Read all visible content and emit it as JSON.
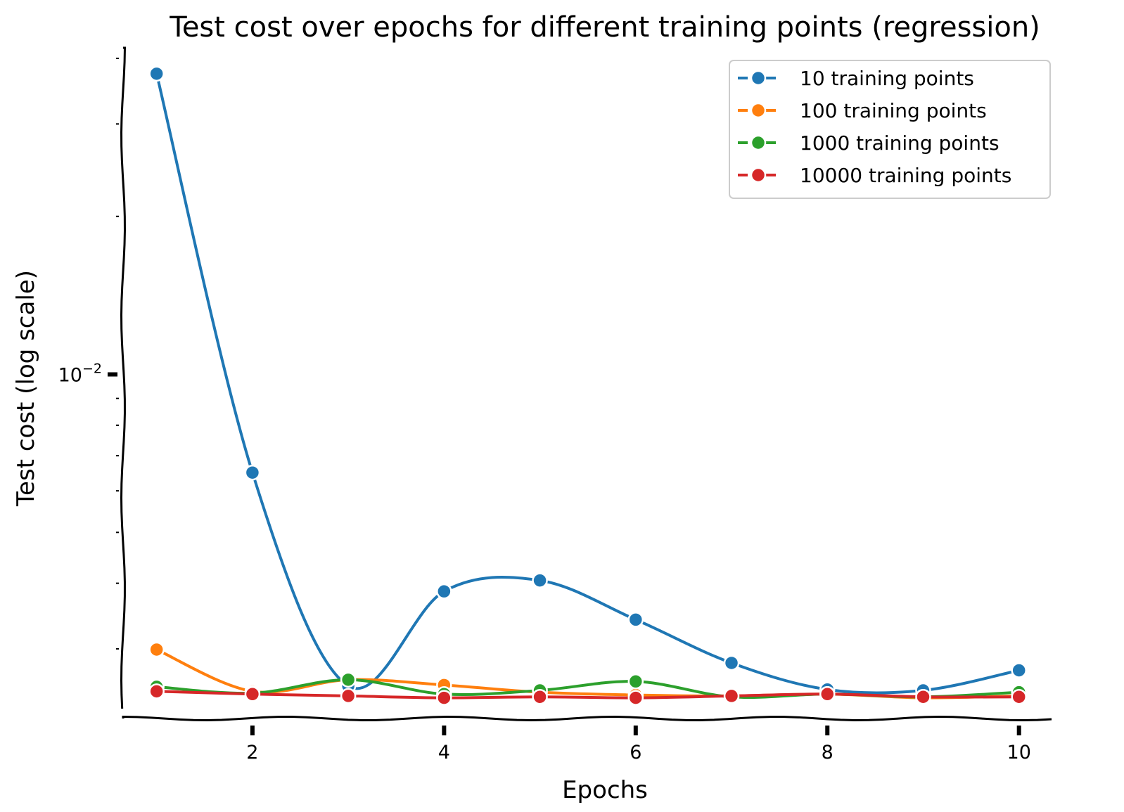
{
  "chart_data": {
    "type": "line",
    "title": "Test cost over epochs for different training points (regression)",
    "xlabel": "Epochs",
    "ylabel": "Test cost (log scale)",
    "yscale": "log",
    "xlim": [
      0.65,
      10.45
    ],
    "ylim": [
      0.00221,
      0.0419
    ],
    "xticks": [
      2,
      4,
      6,
      8,
      10
    ],
    "xtick_labels": [
      "2",
      "4",
      "6",
      "8",
      "10"
    ],
    "yticks": [
      0.01
    ],
    "ytick_labels": [
      {
        "base": "10",
        "exp": "−2"
      }
    ],
    "grid": false,
    "legend_position": "top-right",
    "x": [
      1,
      2,
      3,
      4,
      5,
      6,
      7,
      8,
      9,
      10
    ],
    "series": [
      {
        "name": "10 training points",
        "color": "#1f77b4",
        "values": [
          0.0374,
          0.0065,
          0.00255,
          0.00386,
          0.00405,
          0.00341,
          0.00282,
          0.00251,
          0.0025,
          0.00273
        ]
      },
      {
        "name": "100 training points",
        "color": "#ff7f0e",
        "values": [
          0.00299,
          0.00249,
          0.00262,
          0.00256,
          0.00248,
          0.00245,
          0.00244,
          0.00246,
          0.00242,
          0.00244
        ]
      },
      {
        "name": "1000 training points",
        "color": "#2ca02c",
        "values": [
          0.00254,
          0.00247,
          0.00262,
          0.00246,
          0.0025,
          0.0026,
          0.00243,
          0.00246,
          0.00243,
          0.00248
        ]
      },
      {
        "name": "10000 training points",
        "color": "#d62728",
        "values": [
          0.00249,
          0.00246,
          0.00244,
          0.00242,
          0.00243,
          0.00242,
          0.00244,
          0.00246,
          0.00243,
          0.00243
        ]
      }
    ]
  }
}
